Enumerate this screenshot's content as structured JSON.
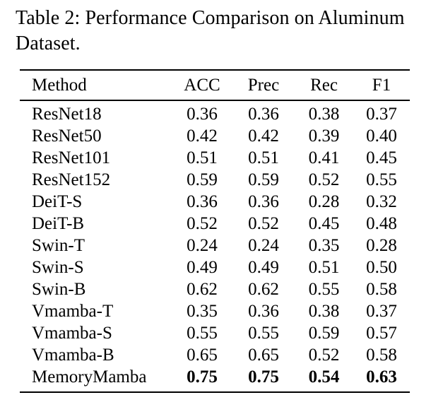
{
  "caption": {
    "lines": [
      "Table 2: Performance Comparison on Aluminum",
      "Dataset."
    ]
  },
  "table": {
    "headers": [
      "Method",
      "ACC",
      "Prec",
      "Rec",
      "F1"
    ],
    "rows": [
      {
        "method": "ResNet18",
        "values": [
          "0.36",
          "0.36",
          "0.38",
          "0.37"
        ],
        "bold_values": false
      },
      {
        "method": "ResNet50",
        "values": [
          "0.42",
          "0.42",
          "0.39",
          "0.40"
        ],
        "bold_values": false
      },
      {
        "method": "ResNet101",
        "values": [
          "0.51",
          "0.51",
          "0.41",
          "0.45"
        ],
        "bold_values": false
      },
      {
        "method": "ResNet152",
        "values": [
          "0.59",
          "0.59",
          "0.52",
          "0.55"
        ],
        "bold_values": false
      },
      {
        "method": "DeiT-S",
        "values": [
          "0.36",
          "0.36",
          "0.28",
          "0.32"
        ],
        "bold_values": false
      },
      {
        "method": "DeiT-B",
        "values": [
          "0.52",
          "0.52",
          "0.45",
          "0.48"
        ],
        "bold_values": false
      },
      {
        "method": "Swin-T",
        "values": [
          "0.24",
          "0.24",
          "0.35",
          "0.28"
        ],
        "bold_values": false
      },
      {
        "method": "Swin-S",
        "values": [
          "0.49",
          "0.49",
          "0.51",
          "0.50"
        ],
        "bold_values": false
      },
      {
        "method": "Swin-B",
        "values": [
          "0.62",
          "0.62",
          "0.55",
          "0.58"
        ],
        "bold_values": false
      },
      {
        "method": "Vmamba-T",
        "values": [
          "0.35",
          "0.36",
          "0.38",
          "0.37"
        ],
        "bold_values": false
      },
      {
        "method": "Vmamba-S",
        "values": [
          "0.55",
          "0.55",
          "0.59",
          "0.57"
        ],
        "bold_values": false
      },
      {
        "method": "Vmamba-B",
        "values": [
          "0.65",
          "0.65",
          "0.52",
          "0.58"
        ],
        "bold_values": false
      },
      {
        "method": "MemoryMamba",
        "values": [
          "0.75",
          "0.75",
          "0.54",
          "0.63"
        ],
        "bold_values": true
      }
    ]
  },
  "colors": {
    "text": "#000000",
    "background": "#ffffff",
    "rule": "#000000"
  },
  "chart_data": {
    "type": "table",
    "title": "Table 2: Performance Comparison on Aluminum Dataset.",
    "columns": [
      "Method",
      "ACC",
      "Prec",
      "Rec",
      "F1"
    ],
    "series": [
      {
        "name": "ACC",
        "values": [
          0.36,
          0.42,
          0.51,
          0.59,
          0.36,
          0.52,
          0.24,
          0.49,
          0.62,
          0.35,
          0.55,
          0.65,
          0.75
        ]
      },
      {
        "name": "Prec",
        "values": [
          0.36,
          0.42,
          0.51,
          0.59,
          0.36,
          0.52,
          0.24,
          0.49,
          0.62,
          0.36,
          0.55,
          0.65,
          0.75
        ]
      },
      {
        "name": "Rec",
        "values": [
          0.38,
          0.39,
          0.41,
          0.52,
          0.28,
          0.45,
          0.35,
          0.51,
          0.55,
          0.38,
          0.59,
          0.52,
          0.54
        ]
      },
      {
        "name": "F1",
        "values": [
          0.37,
          0.4,
          0.45,
          0.55,
          0.32,
          0.48,
          0.28,
          0.5,
          0.58,
          0.37,
          0.57,
          0.58,
          0.63
        ]
      }
    ],
    "categories": [
      "ResNet18",
      "ResNet50",
      "ResNet101",
      "ResNet152",
      "DeiT-S",
      "DeiT-B",
      "Swin-T",
      "Swin-S",
      "Swin-B",
      "Vmamba-T",
      "Vmamba-S",
      "Vmamba-B",
      "MemoryMamba"
    ],
    "bold_row": "MemoryMamba"
  }
}
